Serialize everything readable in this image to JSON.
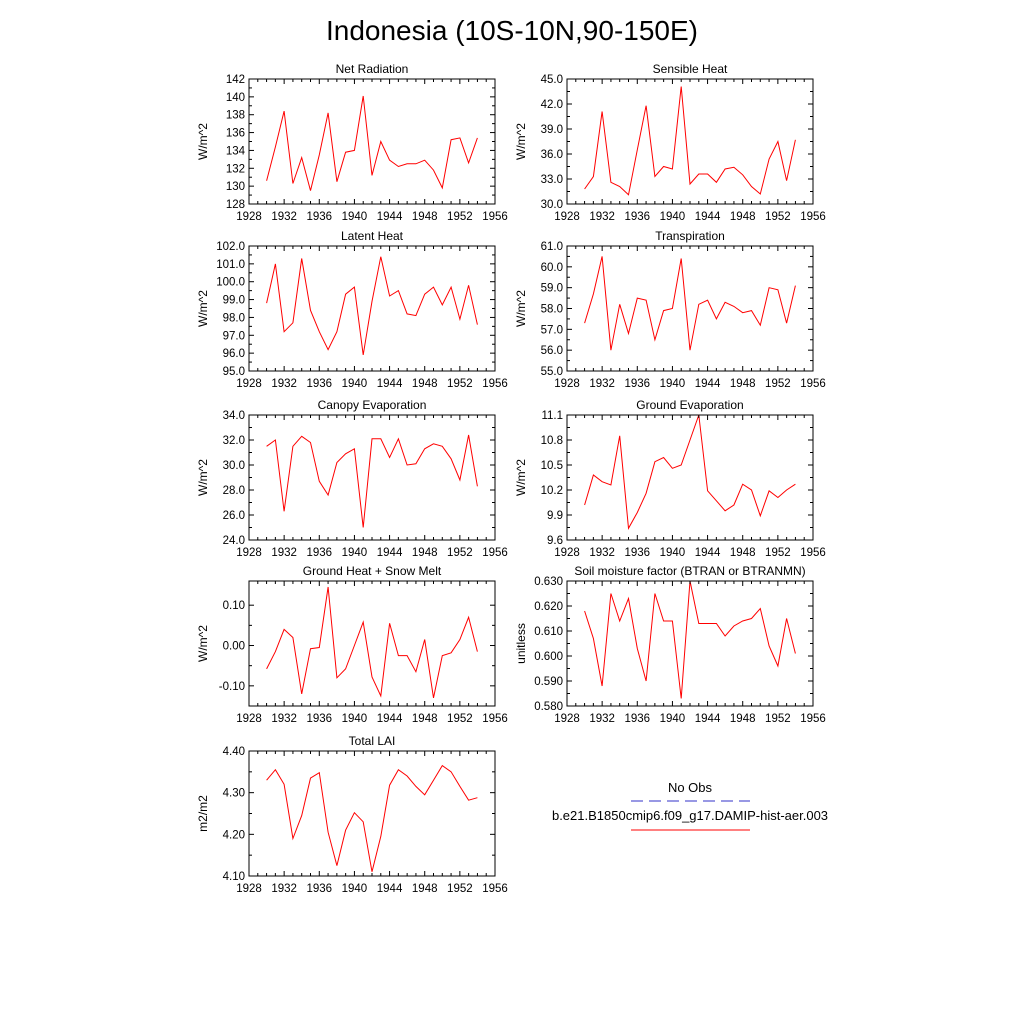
{
  "page_title": "Indonesia (10S-10N,90-150E)",
  "legend": {
    "entries": [
      {
        "label": "No Obs",
        "color": "#3030c8",
        "dash": true
      },
      {
        "label": "b.e21.B1850cmip6.f09_g17.DAMIP-hist-aer.003",
        "color": "#ff0000",
        "dash": false
      }
    ]
  },
  "chart_data": [
    {
      "type": "line",
      "title": "Net Radiation",
      "ylabel": "W/m^2",
      "xlim": [
        1928,
        1956
      ],
      "ylim": [
        128,
        142
      ],
      "x_ticks": [
        1928,
        1932,
        1936,
        1940,
        1944,
        1948,
        1952,
        1956
      ],
      "y_ticks": [
        "128",
        "130",
        "132",
        "134",
        "136",
        "138",
        "140",
        "142"
      ],
      "series": [
        {
          "color": "#ff0000",
          "x": [
            1930,
            1931,
            1932,
            1933,
            1934,
            1935,
            1936,
            1937,
            1938,
            1939,
            1940,
            1941,
            1942,
            1943,
            1944,
            1945,
            1946,
            1947,
            1948,
            1949,
            1950,
            1951,
            1952,
            1953,
            1954
          ],
          "y": [
            130.6,
            134.4,
            138.4,
            130.3,
            133.2,
            129.5,
            133.5,
            138.2,
            130.5,
            133.8,
            134.0,
            140.1,
            131.2,
            135.0,
            132.9,
            132.2,
            132.5,
            132.5,
            132.9,
            131.8,
            129.8,
            135.2,
            135.4,
            132.6,
            135.4
          ]
        }
      ]
    },
    {
      "type": "line",
      "title": "Sensible Heat",
      "ylabel": "W/m^2",
      "xlim": [
        1928,
        1956
      ],
      "ylim": [
        30,
        45
      ],
      "x_ticks": [
        1928,
        1932,
        1936,
        1940,
        1944,
        1948,
        1952,
        1956
      ],
      "y_ticks": [
        "30.0",
        "33.0",
        "36.0",
        "39.0",
        "42.0",
        "45.0"
      ],
      "series": [
        {
          "color": "#ff0000",
          "x": [
            1930,
            1931,
            1932,
            1933,
            1934,
            1935,
            1936,
            1937,
            1938,
            1939,
            1940,
            1941,
            1942,
            1943,
            1944,
            1945,
            1946,
            1947,
            1948,
            1949,
            1950,
            1951,
            1952,
            1953,
            1954
          ],
          "y": [
            31.8,
            33.3,
            41.1,
            32.6,
            32.1,
            31.1,
            36.5,
            41.8,
            33.3,
            34.5,
            34.2,
            44.1,
            32.4,
            33.6,
            33.6,
            32.6,
            34.2,
            34.4,
            33.5,
            32.1,
            31.2,
            35.4,
            37.5,
            32.8,
            37.7
          ]
        }
      ]
    },
    {
      "type": "line",
      "title": "Latent Heat",
      "ylabel": "W/m^2",
      "xlim": [
        1928,
        1956
      ],
      "ylim": [
        95,
        102
      ],
      "x_ticks": [
        1928,
        1932,
        1936,
        1940,
        1944,
        1948,
        1952,
        1956
      ],
      "y_ticks": [
        "95.0",
        "96.0",
        "97.0",
        "98.0",
        "99.0",
        "100.0",
        "101.0",
        "102.0"
      ],
      "series": [
        {
          "color": "#ff0000",
          "x": [
            1930,
            1931,
            1932,
            1933,
            1934,
            1935,
            1936,
            1937,
            1938,
            1939,
            1940,
            1941,
            1942,
            1943,
            1944,
            1945,
            1946,
            1947,
            1948,
            1949,
            1950,
            1951,
            1952,
            1953,
            1954
          ],
          "y": [
            98.8,
            101.0,
            97.2,
            97.7,
            101.3,
            98.4,
            97.2,
            96.2,
            97.2,
            99.3,
            99.7,
            95.9,
            98.9,
            101.4,
            99.2,
            99.5,
            98.2,
            98.1,
            99.3,
            99.7,
            98.7,
            99.7,
            97.9,
            99.8,
            97.6
          ]
        }
      ]
    },
    {
      "type": "line",
      "title": "Transpiration",
      "ylabel": "W/m^2",
      "xlim": [
        1928,
        1956
      ],
      "ylim": [
        55,
        61
      ],
      "x_ticks": [
        1928,
        1932,
        1936,
        1940,
        1944,
        1948,
        1952,
        1956
      ],
      "y_ticks": [
        "55.0",
        "56.0",
        "57.0",
        "58.0",
        "59.0",
        "60.0",
        "61.0"
      ],
      "series": [
        {
          "color": "#ff0000",
          "x": [
            1930,
            1931,
            1932,
            1933,
            1934,
            1935,
            1936,
            1937,
            1938,
            1939,
            1940,
            1941,
            1942,
            1943,
            1944,
            1945,
            1946,
            1947,
            1948,
            1949,
            1950,
            1951,
            1952,
            1953,
            1954
          ],
          "y": [
            57.3,
            58.7,
            60.5,
            56.0,
            58.2,
            56.8,
            58.5,
            58.4,
            56.5,
            57.9,
            58.0,
            60.4,
            56.0,
            58.2,
            58.4,
            57.5,
            58.3,
            58.1,
            57.8,
            57.9,
            57.2,
            59.0,
            58.9,
            57.3,
            59.1
          ]
        }
      ]
    },
    {
      "type": "line",
      "title": "Canopy Evaporation",
      "ylabel": "W/m^2",
      "xlim": [
        1928,
        1956
      ],
      "ylim": [
        24,
        34
      ],
      "x_ticks": [
        1928,
        1932,
        1936,
        1940,
        1944,
        1948,
        1952,
        1956
      ],
      "y_ticks": [
        "24.0",
        "26.0",
        "28.0",
        "30.0",
        "32.0",
        "34.0"
      ],
      "series": [
        {
          "color": "#ff0000",
          "x": [
            1930,
            1931,
            1932,
            1933,
            1934,
            1935,
            1936,
            1937,
            1938,
            1939,
            1940,
            1941,
            1942,
            1943,
            1944,
            1945,
            1946,
            1947,
            1948,
            1949,
            1950,
            1951,
            1952,
            1953,
            1954
          ],
          "y": [
            31.5,
            32.0,
            26.3,
            31.5,
            32.3,
            31.8,
            28.7,
            27.6,
            30.2,
            30.9,
            31.3,
            25.0,
            32.1,
            32.1,
            30.6,
            32.1,
            30.0,
            30.1,
            31.3,
            31.7,
            31.5,
            30.5,
            28.8,
            32.4,
            28.3
          ]
        }
      ]
    },
    {
      "type": "line",
      "title": "Ground Evaporation",
      "ylabel": "W/m^2",
      "xlim": [
        1928,
        1956
      ],
      "ylim": [
        9.6,
        11.1
      ],
      "x_ticks": [
        1928,
        1932,
        1936,
        1940,
        1944,
        1948,
        1952,
        1956
      ],
      "y_ticks": [
        "9.6",
        "9.9",
        "10.2",
        "10.5",
        "10.8",
        "11.1"
      ],
      "series": [
        {
          "color": "#ff0000",
          "x": [
            1930,
            1931,
            1932,
            1933,
            1934,
            1935,
            1936,
            1937,
            1938,
            1939,
            1940,
            1941,
            1942,
            1943,
            1944,
            1945,
            1946,
            1947,
            1948,
            1949,
            1950,
            1951,
            1952,
            1953,
            1954
          ],
          "y": [
            10.02,
            10.38,
            10.3,
            10.26,
            10.85,
            9.74,
            9.93,
            10.16,
            10.54,
            10.59,
            10.46,
            10.5,
            10.8,
            11.1,
            10.19,
            10.07,
            9.95,
            10.02,
            10.27,
            10.2,
            9.89,
            10.19,
            10.11,
            10.2,
            10.27
          ]
        }
      ]
    },
    {
      "type": "line",
      "title": "Ground Heat + Snow Melt",
      "ylabel": "W/m^2",
      "xlim": [
        1928,
        1956
      ],
      "ylim": [
        -0.15,
        0.16
      ],
      "x_ticks": [
        1928,
        1932,
        1936,
        1940,
        1944,
        1948,
        1952,
        1956
      ],
      "y_ticks": [
        "-0.10",
        "0.00",
        "0.10"
      ],
      "y_tick_values": [
        -0.1,
        0.0,
        0.1
      ],
      "series": [
        {
          "color": "#ff0000",
          "x": [
            1930,
            1931,
            1932,
            1933,
            1934,
            1935,
            1936,
            1937,
            1938,
            1939,
            1940,
            1941,
            1942,
            1943,
            1944,
            1945,
            1946,
            1947,
            1948,
            1949,
            1950,
            1951,
            1952,
            1953,
            1954
          ],
          "y": [
            -0.058,
            -0.015,
            0.04,
            0.02,
            -0.12,
            -0.008,
            -0.005,
            0.145,
            -0.08,
            -0.058,
            0.0,
            0.058,
            -0.078,
            -0.125,
            0.055,
            -0.025,
            -0.025,
            -0.065,
            0.015,
            -0.13,
            -0.025,
            -0.018,
            0.015,
            0.07,
            -0.015
          ]
        }
      ]
    },
    {
      "type": "line",
      "title": "Soil moisture factor (BTRAN or BTRANMN)",
      "ylabel": "unitless",
      "xlim": [
        1928,
        1956
      ],
      "ylim": [
        0.58,
        0.63
      ],
      "x_ticks": [
        1928,
        1932,
        1936,
        1940,
        1944,
        1948,
        1952,
        1956
      ],
      "y_ticks": [
        "0.580",
        "0.590",
        "0.600",
        "0.610",
        "0.620",
        "0.630"
      ],
      "series": [
        {
          "color": "#ff0000",
          "x": [
            1930,
            1931,
            1932,
            1933,
            1934,
            1935,
            1936,
            1937,
            1938,
            1939,
            1940,
            1941,
            1942,
            1943,
            1944,
            1945,
            1946,
            1947,
            1948,
            1949,
            1950,
            1951,
            1952,
            1953,
            1954
          ],
          "y": [
            0.618,
            0.607,
            0.588,
            0.625,
            0.614,
            0.623,
            0.603,
            0.59,
            0.625,
            0.614,
            0.614,
            0.583,
            0.63,
            0.613,
            0.613,
            0.613,
            0.608,
            0.612,
            0.614,
            0.615,
            0.619,
            0.604,
            0.596,
            0.615,
            0.601
          ]
        }
      ]
    },
    {
      "type": "line",
      "title": "Total LAI",
      "ylabel": "m2/m2",
      "xlim": [
        1928,
        1956
      ],
      "ylim": [
        4.1,
        4.4
      ],
      "x_ticks": [
        1928,
        1932,
        1936,
        1940,
        1944,
        1948,
        1952,
        1956
      ],
      "y_ticks": [
        "4.10",
        "4.20",
        "4.30",
        "4.40"
      ],
      "series": [
        {
          "color": "#ff0000",
          "x": [
            1930,
            1931,
            1932,
            1933,
            1934,
            1935,
            1936,
            1937,
            1938,
            1939,
            1940,
            1941,
            1942,
            1943,
            1944,
            1945,
            1946,
            1947,
            1948,
            1949,
            1950,
            1951,
            1952,
            1953,
            1954
          ],
          "y": [
            4.33,
            4.355,
            4.32,
            4.19,
            4.245,
            4.335,
            4.348,
            4.205,
            4.125,
            4.21,
            4.252,
            4.23,
            4.11,
            4.195,
            4.318,
            4.355,
            4.34,
            4.315,
            4.295,
            4.33,
            4.365,
            4.35,
            4.315,
            4.282,
            4.288
          ]
        }
      ]
    }
  ]
}
